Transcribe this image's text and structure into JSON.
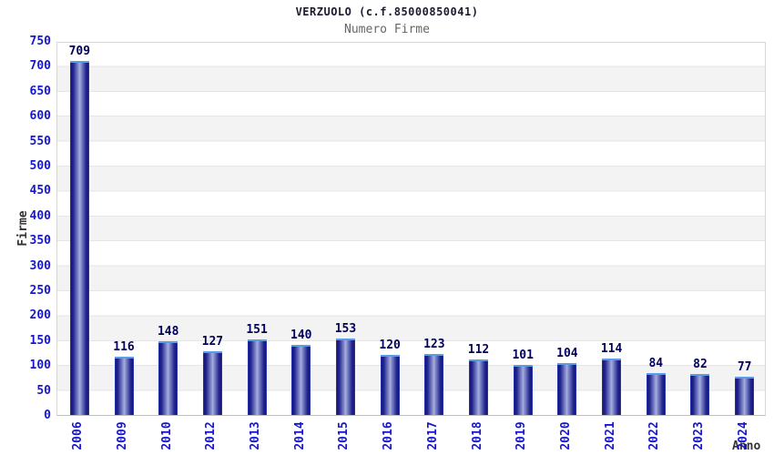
{
  "chart_data": {
    "type": "bar",
    "title": "VERZUOLO (c.f.85000850041)",
    "subtitle": "Numero Firme",
    "xlabel": "Anno",
    "ylabel": "Firme",
    "categories": [
      "2006",
      "2009",
      "2010",
      "2012",
      "2013",
      "2014",
      "2015",
      "2016",
      "2017",
      "2018",
      "2019",
      "2020",
      "2021",
      "2022",
      "2023",
      "2024"
    ],
    "values": [
      709,
      116,
      148,
      127,
      151,
      140,
      153,
      120,
      123,
      112,
      101,
      104,
      114,
      84,
      82,
      77
    ],
    "ylim": [
      0,
      750
    ],
    "ytick_step": 50,
    "yticks": [
      0,
      50,
      100,
      150,
      200,
      250,
      300,
      350,
      400,
      450,
      500,
      550,
      600,
      650,
      700,
      750
    ],
    "grid": "horizontal-bands",
    "legend": "none",
    "colors": {
      "bar_edge": "#2d47c8",
      "bar_dark": "#181878",
      "bar_mid": "#232390",
      "bar_highlight": "#a7aedd",
      "bar_top_cap": "#5b9ce8",
      "tick_text": "#1717cf",
      "value_text": "#00005a",
      "axis_title_text": "#333333",
      "title_text": "#1c1c30",
      "subtitle_text": "#666666",
      "band_fill": "#f3f3f3",
      "gridline": "#e6e6e6",
      "plot_border": "#d6d6d6"
    }
  }
}
